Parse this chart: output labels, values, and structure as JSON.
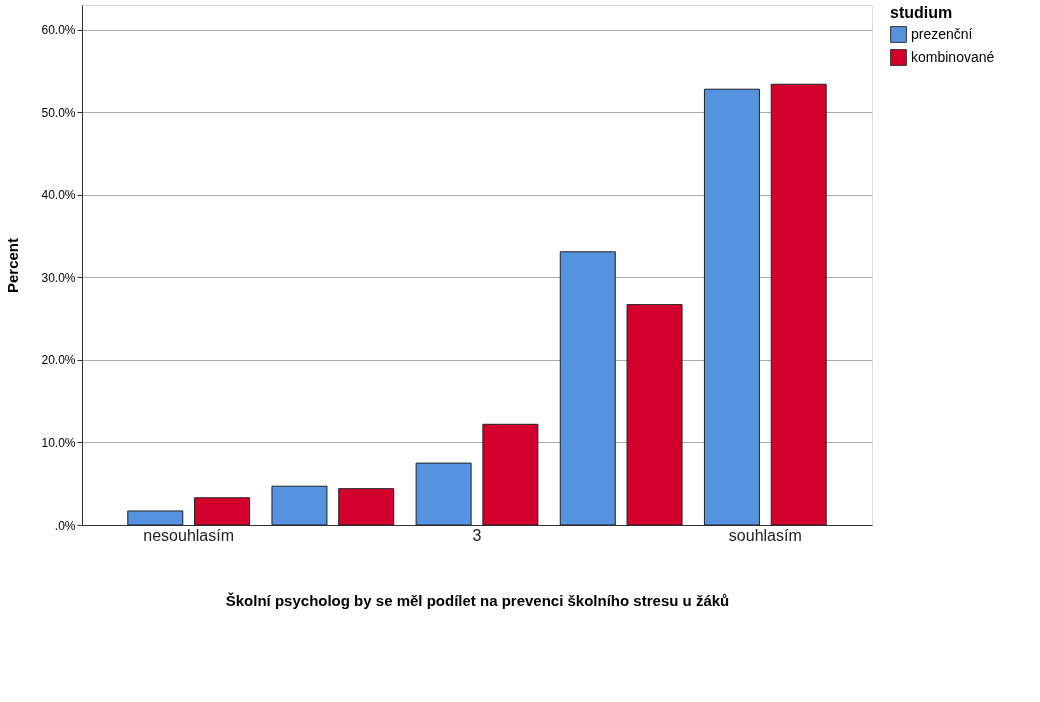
{
  "chart_data": {
    "type": "bar",
    "xlabel": "Školní psycholog by se měl podílet na prevenci školního stresu u žáků",
    "ylabel": "Percent",
    "legend_title": "studium",
    "categories": [
      "nesouhlasím",
      null,
      "3",
      null,
      "souhlasím"
    ],
    "series": [
      {
        "name": "prezenční",
        "color": "#5593e0",
        "values": [
          1.7,
          4.7,
          7.5,
          33.1,
          52.8
        ]
      },
      {
        "name": "kombinované",
        "color": "#d3002d",
        "values": [
          3.3,
          4.4,
          12.2,
          26.7,
          53.4
        ]
      }
    ],
    "ylim": [
      0,
      63
    ],
    "yticks": [
      {
        "value": 0,
        "label": ".0%"
      },
      {
        "value": 10,
        "label": "10.0%"
      },
      {
        "value": 20,
        "label": "20.0%"
      },
      {
        "value": 30,
        "label": "30.0%"
      },
      {
        "value": 40,
        "label": "40.0%"
      },
      {
        "value": 50,
        "label": "50.0%"
      },
      {
        "value": 60,
        "label": "60.0%"
      }
    ],
    "grid": "y",
    "legend": "top right"
  }
}
